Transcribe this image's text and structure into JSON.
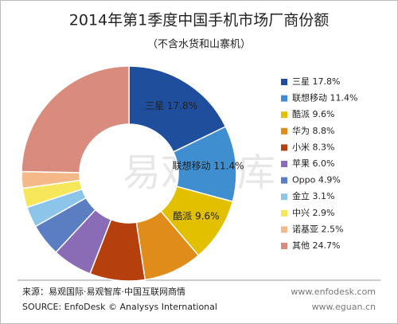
{
  "chart_data": {
    "type": "donut",
    "title": "2014年第1季度中国手机市场厂商份额",
    "subtitle": "（不含水货和山寨机）",
    "categories": [
      "三星",
      "联想移动",
      "酷派",
      "华为",
      "小米",
      "苹果",
      "Oppo",
      "金立",
      "中兴",
      "诺基亚",
      "其他"
    ],
    "values": [
      17.8,
      11.4,
      9.6,
      8.8,
      8.3,
      6.0,
      4.9,
      3.1,
      2.9,
      2.5,
      24.7
    ],
    "value_labels": [
      "17.8%",
      "11.4%",
      "9.6%",
      "8.8%",
      "8.3%",
      "6.0%",
      "4.9%",
      "3.1%",
      "2.9%",
      "2.5%",
      "24.7%"
    ],
    "colors": [
      "#1f4e9c",
      "#3f8fd0",
      "#e2c000",
      "#e08c1a",
      "#b5400e",
      "#8a6bb5",
      "#5b7ec2",
      "#8cc4ea",
      "#f5e65a",
      "#f5b888",
      "#d98b7e"
    ],
    "legend": "right",
    "watermark": "易观智库",
    "source_cn": "来源：易观国际·易观智库·中国互联网商情",
    "source_en": "SOURCE: EnfoDesk © Analysys International",
    "url1": "www.enfodesk.com",
    "url2": "www.eguan.cn"
  }
}
